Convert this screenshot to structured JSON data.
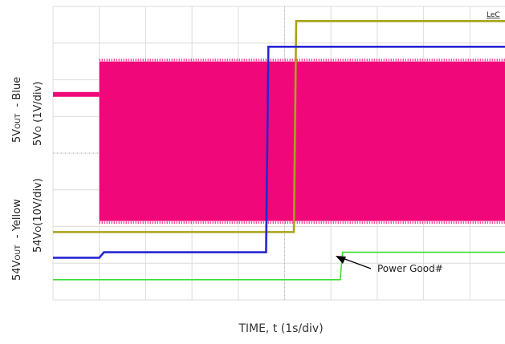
{
  "chart_data": {
    "type": "line",
    "vendor_mark": "LeC",
    "xlabel": "TIME, t (1s/div)",
    "ylabel_blue_prefix": "5V",
    "ylabel_blue_sub": "OUT",
    "ylabel_blue_suffix": "  - Blue",
    "ylabel_blue_scale_prefix": "5V",
    "ylabel_blue_scale_sub": "O",
    "ylabel_blue_scale_suffix": " (1V/div)",
    "ylabel_yellow_prefix": "54V",
    "ylabel_yellow_sub": "OUT",
    "ylabel_yellow_suffix": "  - Yellow",
    "ylabel_yellow_scale_prefix": "54V",
    "ylabel_yellow_scale_sub": "O",
    "ylabel_yellow_scale_suffix": "(10V/div)",
    "annotation": "Power Good#",
    "grid": true,
    "x_divisions": 10,
    "y_divisions": 8,
    "xlim_div": [
      0,
      10
    ],
    "colors": {
      "background": "#ffffff",
      "grid": "#dcdcdc",
      "grid_dots": "#b8b8b8",
      "pink": "#f0087a",
      "yellow": "#a7a41a",
      "blue": "#2626d2",
      "green": "#3ddc34",
      "text": "#222222"
    },
    "series": [
      {
        "color": "pink",
        "segments": [
          {
            "x": [
              0,
              1.0
            ],
            "level": 5.6
          }
        ],
        "burst": {
          "x": [
            1.0,
            10
          ],
          "top": 6.5,
          "bottom": 2.15
        }
      },
      {
        "color": "yellow",
        "x": [
          0,
          1.0,
          1.05,
          5.2,
          5.25,
          10
        ],
        "y": [
          1.85,
          1.85,
          1.85,
          1.85,
          7.6,
          7.6
        ]
      },
      {
        "color": "blue",
        "x": [
          0,
          1.0,
          1.1,
          4.6,
          4.65,
          10
        ],
        "y": [
          1.15,
          1.15,
          1.3,
          1.3,
          6.9,
          6.9
        ]
      },
      {
        "color": "green",
        "x": [
          0,
          6.2,
          6.25,
          10
        ],
        "y": [
          0.55,
          0.55,
          1.3,
          1.3
        ]
      }
    ]
  }
}
